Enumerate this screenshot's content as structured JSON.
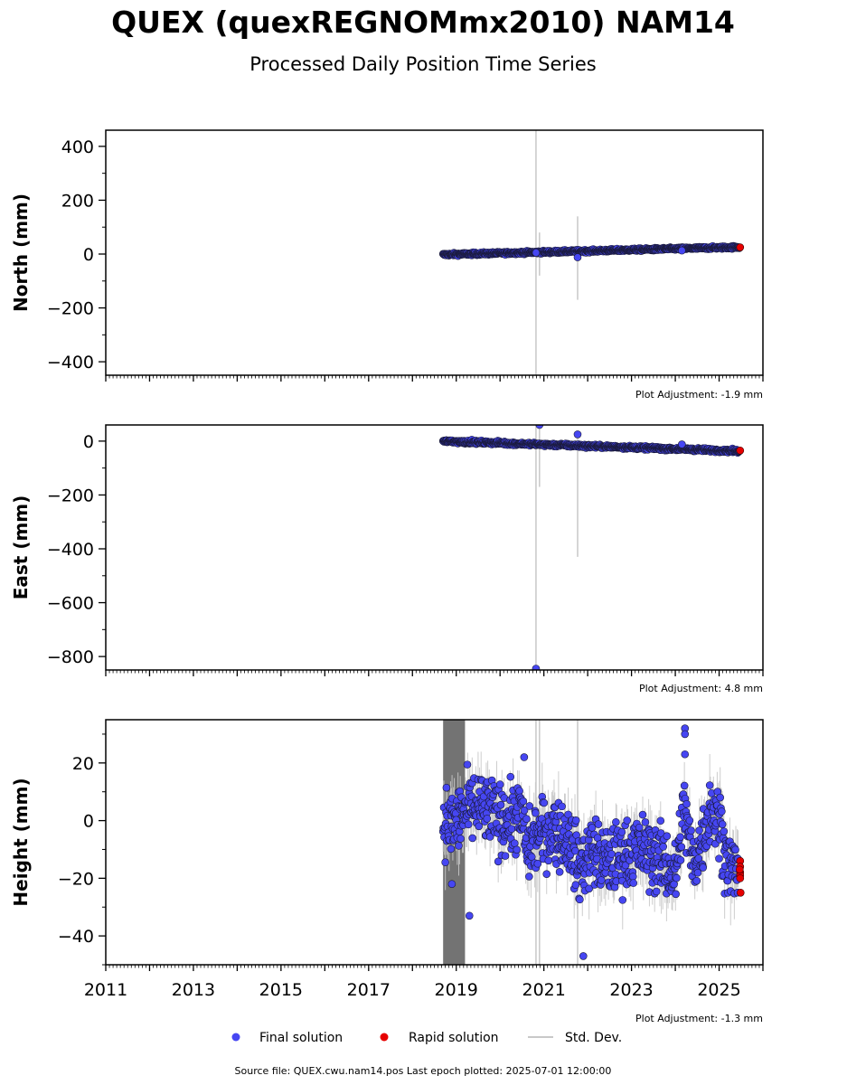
{
  "title": "QUEX (quexREGNOMmx2010) NAM14",
  "subtitle": "Processed Daily Position Time Series",
  "footer": "Source file: QUEX.cwu.nam14.pos  Last epoch plotted: 2025-07-01 12:00:00",
  "colors": {
    "final": "#4646f2",
    "rapid": "#e60000",
    "stddev": "#c8c8c8",
    "stddev_dense": "#5a5a5a"
  },
  "legend": {
    "final_label": "Final solution",
    "rapid_label": "Rapid solution",
    "stddev_label": "Std. Dev."
  },
  "chart_data": [
    {
      "type": "scatter",
      "ylabel": "North (mm)",
      "adjustment_text": "Plot Adjustment: -1.9 mm",
      "xlim": [
        2011,
        2026
      ],
      "ylim": [
        -450,
        460
      ],
      "yticks": [
        -400,
        -200,
        0,
        200,
        400
      ],
      "trend": {
        "start": [
          2018.7,
          -2
        ],
        "end": [
          2025.5,
          26
        ]
      },
      "scatter_sd": 2.5,
      "rapid_points": [
        [
          2025.48,
          25
        ]
      ],
      "outliers": [
        [
          2020.82,
          5
        ],
        [
          2021.77,
          -12
        ],
        [
          2024.15,
          13
        ]
      ],
      "errorbars": [
        [
          2020.82,
          -450,
          460
        ],
        [
          2020.9,
          -80,
          80
        ],
        [
          2021.77,
          -170,
          140
        ]
      ]
    },
    {
      "type": "scatter",
      "ylabel": "East (mm)",
      "adjustment_text": "Plot Adjustment: 4.8 mm",
      "xlim": [
        2011,
        2026
      ],
      "ylim": [
        -850,
        60
      ],
      "yticks": [
        -800,
        -600,
        -400,
        -200,
        0
      ],
      "trend": {
        "start": [
          2018.7,
          0
        ],
        "end": [
          2025.5,
          -37
        ]
      },
      "scatter_sd": 3,
      "rapid_points": [
        [
          2025.48,
          -35
        ]
      ],
      "outliers": [
        [
          2020.82,
          -845
        ],
        [
          2020.9,
          60
        ],
        [
          2021.77,
          25
        ],
        [
          2024.15,
          -12
        ]
      ],
      "errorbars": [
        [
          2020.82,
          -850,
          60
        ],
        [
          2020.9,
          -170,
          60
        ],
        [
          2021.77,
          -430,
          30
        ]
      ]
    },
    {
      "type": "scatter",
      "ylabel": "Height (mm)",
      "adjustment_text": "Plot Adjustment: -1.3 mm",
      "xlim": [
        2011,
        2026
      ],
      "ylim": [
        -50,
        35
      ],
      "yticks": [
        -40,
        -20,
        0,
        20
      ],
      "series_profile": [
        [
          2018.7,
          0
        ],
        [
          2018.9,
          -2
        ],
        [
          2019.2,
          3
        ],
        [
          2019.5,
          5
        ],
        [
          2019.8,
          2
        ],
        [
          2020.2,
          0
        ],
        [
          2020.5,
          2
        ],
        [
          2020.6,
          -10
        ],
        [
          2020.9,
          -5
        ],
        [
          2021.2,
          -3
        ],
        [
          2021.6,
          -7
        ],
        [
          2021.8,
          -17
        ],
        [
          2022.1,
          -10
        ],
        [
          2022.4,
          -15
        ],
        [
          2022.8,
          -12
        ],
        [
          2023.2,
          -10
        ],
        [
          2023.5,
          -12
        ],
        [
          2023.8,
          -15
        ],
        [
          2024.0,
          -20
        ],
        [
          2024.2,
          5
        ],
        [
          2024.4,
          -15
        ],
        [
          2024.6,
          -8
        ],
        [
          2024.8,
          5
        ],
        [
          2025.0,
          0
        ],
        [
          2025.2,
          -15
        ],
        [
          2025.5,
          -18
        ]
      ],
      "scatter_sd": 6,
      "rapid_points": [
        [
          2025.48,
          -14
        ],
        [
          2025.48,
          -16
        ],
        [
          2025.48,
          -18
        ],
        [
          2025.48,
          -19
        ],
        [
          2025.48,
          -20
        ],
        [
          2025.49,
          -25
        ],
        [
          2025.47,
          -17
        ]
      ],
      "outliers": [
        [
          2018.9,
          -22
        ],
        [
          2019.3,
          -33
        ],
        [
          2021.9,
          -47
        ],
        [
          2024.22,
          32
        ],
        [
          2024.22,
          30
        ],
        [
          2024.22,
          23
        ],
        [
          2020.55,
          22
        ]
      ],
      "errorbars": [
        [
          2020.82,
          -50,
          35
        ],
        [
          2020.9,
          -50,
          35
        ],
        [
          2021.77,
          -50,
          35
        ]
      ],
      "dense_band": [
        2018.7,
        2019.2
      ]
    }
  ],
  "xaxis": {
    "ticks": [
      2011,
      2013,
      2015,
      2017,
      2019,
      2021,
      2023,
      2025
    ]
  }
}
